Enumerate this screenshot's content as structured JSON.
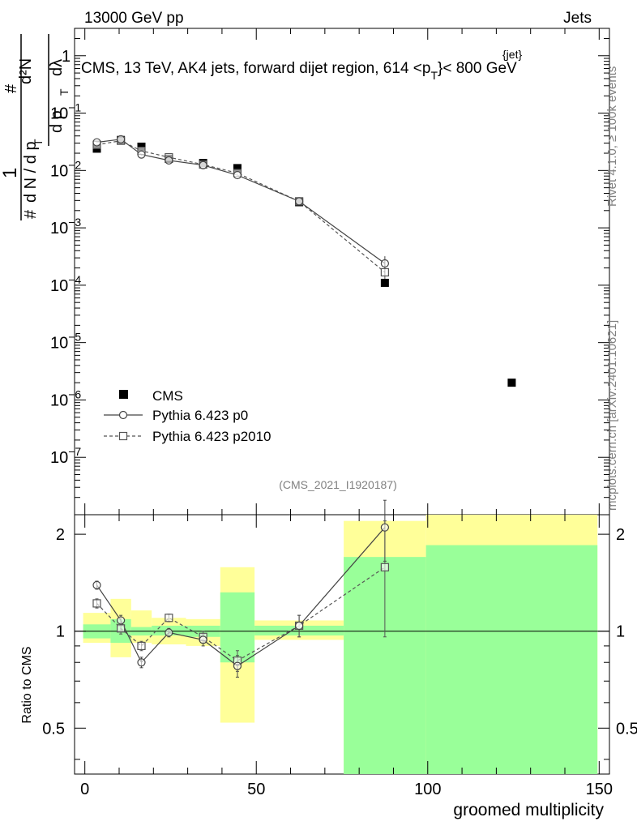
{
  "header": {
    "left": "13000 GeV pp",
    "right": "Jets"
  },
  "plot_title_lines": {
    "prefix": "CMS, 13 TeV, AK4 jets, forward dijet region, 614 <p",
    "sup": "{jet}",
    "sub": "T",
    "suffix": "}< 800 GeV"
  },
  "ylabel_top": {
    "hash": "#",
    "one": "1",
    "dN_dp": "d N / d p",
    "T": "T",
    "d2N": "d²N",
    "dpT_dlambda": "d p",
    "lambda": "dλ"
  },
  "side_labels": {
    "rivet": "Rivet 4.1.0, ≥ 100k events",
    "mcplots": "mcplots.cern.ch [arXiv:2401.10621]"
  },
  "analysis_id": "(CMS_2021_I1920187)",
  "ratio_ylabel": "Ratio to CMS",
  "xlabel": "groomed multiplicity",
  "legend": {
    "cms": "CMS",
    "p0": "Pythia 6.423 p0",
    "p2010": "Pythia 6.423 p2010"
  },
  "colors": {
    "data": "#000000",
    "p0": "#444444",
    "p2010": "#555555",
    "band_inner": "#99ff99",
    "band_outer": "#ffff99",
    "side_text": "#808080"
  },
  "chart_data": {
    "type": "scatter",
    "title": "CMS, 13 TeV, AK4 jets, forward dijet region, 614 < pT{jet} < 800 GeV",
    "xlabel": "groomed multiplicity",
    "ylabel": "1/(dN/dpT) d2N/(dpT dλ)",
    "xlim": [
      -3,
      153
    ],
    "ylim_log": [
      1e-08,
      3
    ],
    "x_ticks": [
      0,
      50,
      100,
      150
    ],
    "y_ticks": [
      1e-07,
      1e-06,
      1e-05,
      0.0001,
      0.001,
      0.01,
      0.1,
      1
    ],
    "y_tick_labels": [
      {
        "base": "10",
        "exp": "−7"
      },
      {
        "base": "10",
        "exp": "−6"
      },
      {
        "base": "10",
        "exp": "−5"
      },
      {
        "base": "10",
        "exp": "−4"
      },
      {
        "base": "10",
        "exp": "−3"
      },
      {
        "base": "10",
        "exp": "−2"
      },
      {
        "base": "10",
        "exp": "−1"
      },
      {
        "base": "1",
        "exp": ""
      }
    ],
    "series": [
      {
        "name": "CMS",
        "x": [
          3.5,
          10.5,
          16.5,
          24.5,
          34.5,
          44.5,
          62.5,
          87.5,
          124.5
        ],
        "values": [
          0.024,
          0.034,
          0.026,
          0.016,
          0.0135,
          0.011,
          0.0028,
          0.00011,
          2e-06
        ]
      },
      {
        "name": "Pythia 6.423 p0",
        "x": [
          3.5,
          10.5,
          16.5,
          24.5,
          34.5,
          44.5,
          62.5,
          87.5
        ],
        "values": [
          0.031,
          0.035,
          0.019,
          0.015,
          0.0124,
          0.0083,
          0.0029,
          0.00024
        ],
        "yerr_low": [
          0.001,
          0.001,
          0.0006,
          0.0004,
          0.0004,
          0.0003,
          0.0001,
          5e-05
        ],
        "yerr_high": [
          0.001,
          0.001,
          0.0006,
          0.0004,
          0.0004,
          0.0003,
          0.0001,
          8e-05
        ]
      },
      {
        "name": "Pythia 6.423 p2010",
        "x": [
          3.5,
          10.5,
          16.5,
          24.5,
          34.5,
          44.5,
          62.5,
          87.5
        ],
        "values": [
          0.028,
          0.033,
          0.022,
          0.017,
          0.0127,
          0.009,
          0.0029,
          0.000168
        ],
        "yerr_low": [
          0.0008,
          0.001,
          0.0007,
          0.0005,
          0.0004,
          0.0003,
          0.0001,
          5e-05
        ],
        "yerr_high": [
          0.0008,
          0.001,
          0.0007,
          0.0005,
          0.0004,
          0.0003,
          0.0001,
          6e-05
        ]
      }
    ],
    "ratio": {
      "ylabel": "Ratio to CMS",
      "ylim": [
        0.36,
        2.3
      ],
      "y_ticks": [
        0.5,
        1,
        2
      ],
      "bins": [
        {
          "lo": -0.5,
          "hi": 7.5,
          "inner": [
            0.95,
            1.05
          ],
          "outer": [
            0.92,
            1.14
          ]
        },
        {
          "lo": 7.5,
          "hi": 13.5,
          "inner": [
            0.92,
            1.09
          ],
          "outer": [
            0.83,
            1.26
          ]
        },
        {
          "lo": 13.5,
          "hi": 19.5,
          "inner": [
            0.97,
            1.03
          ],
          "outer": [
            0.92,
            1.16
          ]
        },
        {
          "lo": 19.5,
          "hi": 29.5,
          "inner": [
            0.97,
            1.04
          ],
          "outer": [
            0.91,
            1.1
          ]
        },
        {
          "lo": 29.5,
          "hi": 39.5,
          "inner": [
            0.96,
            1.04
          ],
          "outer": [
            0.9,
            1.09
          ]
        },
        {
          "lo": 39.5,
          "hi": 49.5,
          "inner": [
            0.8,
            1.32
          ],
          "outer": [
            0.52,
            1.58
          ]
        },
        {
          "lo": 49.5,
          "hi": 75.5,
          "inner": [
            0.97,
            1.04
          ],
          "outer": [
            0.94,
            1.08
          ]
        },
        {
          "lo": 75.5,
          "hi": 99.5,
          "inner": [
            0.36,
            1.7
          ],
          "outer": [
            0.36,
            2.2
          ]
        },
        {
          "lo": 99.5,
          "hi": 149.5,
          "inner": [
            0.36,
            1.85
          ],
          "outer": [
            0.36,
            2.3
          ]
        }
      ],
      "series": [
        {
          "name": "Pythia 6.423 p0",
          "x": [
            3.5,
            10.5,
            16.5,
            24.5,
            34.5,
            44.5,
            62.5,
            87.5
          ],
          "values": [
            1.39,
            1.08,
            0.8,
            0.99,
            0.94,
            0.78,
            1.04,
            2.1
          ],
          "err": [
            0.04,
            0.04,
            0.03,
            0.03,
            0.04,
            0.06,
            0.08,
            0.45
          ]
        },
        {
          "name": "Pythia 6.423 p2010",
          "x": [
            3.5,
            10.5,
            16.5,
            24.5,
            34.5,
            44.5,
            62.5,
            87.5
          ],
          "values": [
            1.22,
            1.02,
            0.9,
            1.1,
            0.96,
            0.81,
            1.04,
            1.58
          ],
          "err": [
            0.04,
            0.04,
            0.03,
            0.03,
            0.04,
            0.06,
            0.08,
            0.62
          ]
        }
      ]
    }
  }
}
